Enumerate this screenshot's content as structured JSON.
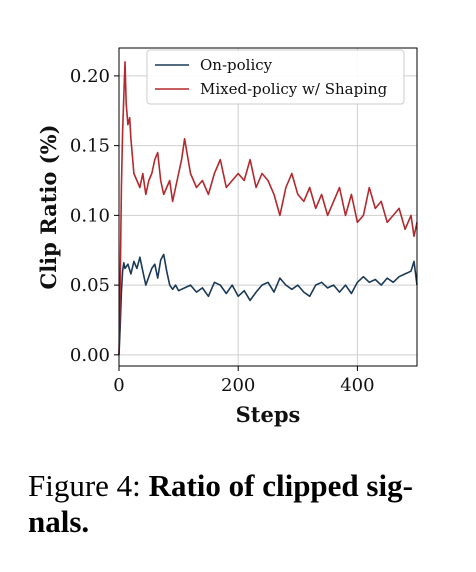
{
  "caption": {
    "label": "Figure 4:",
    "text": "Ratio of clipped sig-nals."
  },
  "chart_data": {
    "type": "line",
    "title": "",
    "xlabel": "Steps",
    "ylabel": "Clip Ratio (%)",
    "xlim": [
      0,
      500
    ],
    "ylim": [
      -0.008,
      0.22
    ],
    "xticks": [
      0,
      200,
      400
    ],
    "yticks": [
      0.0,
      0.05,
      0.1,
      0.15,
      0.2
    ],
    "ytick_labels": [
      "0.00",
      "0.05",
      "0.10",
      "0.15",
      "0.20"
    ],
    "grid": true,
    "legend": {
      "position": "top-right"
    },
    "series": [
      {
        "name": "On-policy",
        "color": "#1b3a57",
        "x": [
          0,
          2,
          4,
          6,
          8,
          10,
          15,
          20,
          25,
          30,
          35,
          40,
          45,
          50,
          55,
          60,
          65,
          70,
          75,
          80,
          85,
          90,
          95,
          100,
          110,
          120,
          130,
          140,
          150,
          160,
          170,
          180,
          190,
          200,
          210,
          220,
          230,
          240,
          250,
          260,
          270,
          280,
          290,
          300,
          310,
          320,
          330,
          340,
          350,
          360,
          370,
          380,
          390,
          400,
          410,
          420,
          430,
          440,
          450,
          460,
          470,
          480,
          490,
          495,
          500
        ],
        "values": [
          0.0,
          0.02,
          0.045,
          0.06,
          0.066,
          0.062,
          0.065,
          0.058,
          0.067,
          0.062,
          0.07,
          0.06,
          0.05,
          0.056,
          0.062,
          0.065,
          0.055,
          0.068,
          0.072,
          0.06,
          0.05,
          0.047,
          0.05,
          0.046,
          0.048,
          0.05,
          0.045,
          0.048,
          0.042,
          0.052,
          0.05,
          0.044,
          0.05,
          0.042,
          0.046,
          0.039,
          0.045,
          0.05,
          0.052,
          0.045,
          0.055,
          0.05,
          0.047,
          0.05,
          0.045,
          0.042,
          0.05,
          0.052,
          0.048,
          0.05,
          0.045,
          0.05,
          0.044,
          0.052,
          0.056,
          0.052,
          0.054,
          0.05,
          0.055,
          0.052,
          0.056,
          0.058,
          0.06,
          0.067,
          0.05
        ]
      },
      {
        "name": "Mixed-policy w/ Shaping",
        "color": "#b22a2e",
        "x": [
          0,
          2,
          4,
          6,
          8,
          10,
          12,
          15,
          18,
          20,
          25,
          30,
          35,
          40,
          45,
          50,
          55,
          60,
          65,
          70,
          75,
          80,
          85,
          90,
          95,
          100,
          105,
          110,
          120,
          130,
          140,
          150,
          160,
          170,
          180,
          190,
          200,
          210,
          220,
          230,
          240,
          250,
          260,
          270,
          280,
          290,
          300,
          310,
          320,
          330,
          340,
          350,
          360,
          370,
          380,
          390,
          400,
          410,
          420,
          430,
          440,
          450,
          460,
          470,
          480,
          490,
          495,
          500
        ],
        "values": [
          0.0,
          0.05,
          0.12,
          0.16,
          0.185,
          0.21,
          0.18,
          0.165,
          0.17,
          0.155,
          0.13,
          0.125,
          0.12,
          0.13,
          0.115,
          0.125,
          0.13,
          0.14,
          0.145,
          0.125,
          0.115,
          0.12,
          0.125,
          0.11,
          0.12,
          0.13,
          0.14,
          0.155,
          0.13,
          0.12,
          0.125,
          0.115,
          0.13,
          0.14,
          0.12,
          0.125,
          0.13,
          0.125,
          0.14,
          0.12,
          0.13,
          0.125,
          0.115,
          0.1,
          0.12,
          0.13,
          0.115,
          0.11,
          0.12,
          0.105,
          0.115,
          0.1,
          0.11,
          0.12,
          0.1,
          0.115,
          0.095,
          0.1,
          0.12,
          0.105,
          0.11,
          0.095,
          0.1,
          0.105,
          0.09,
          0.1,
          0.085,
          0.095
        ]
      }
    ]
  }
}
